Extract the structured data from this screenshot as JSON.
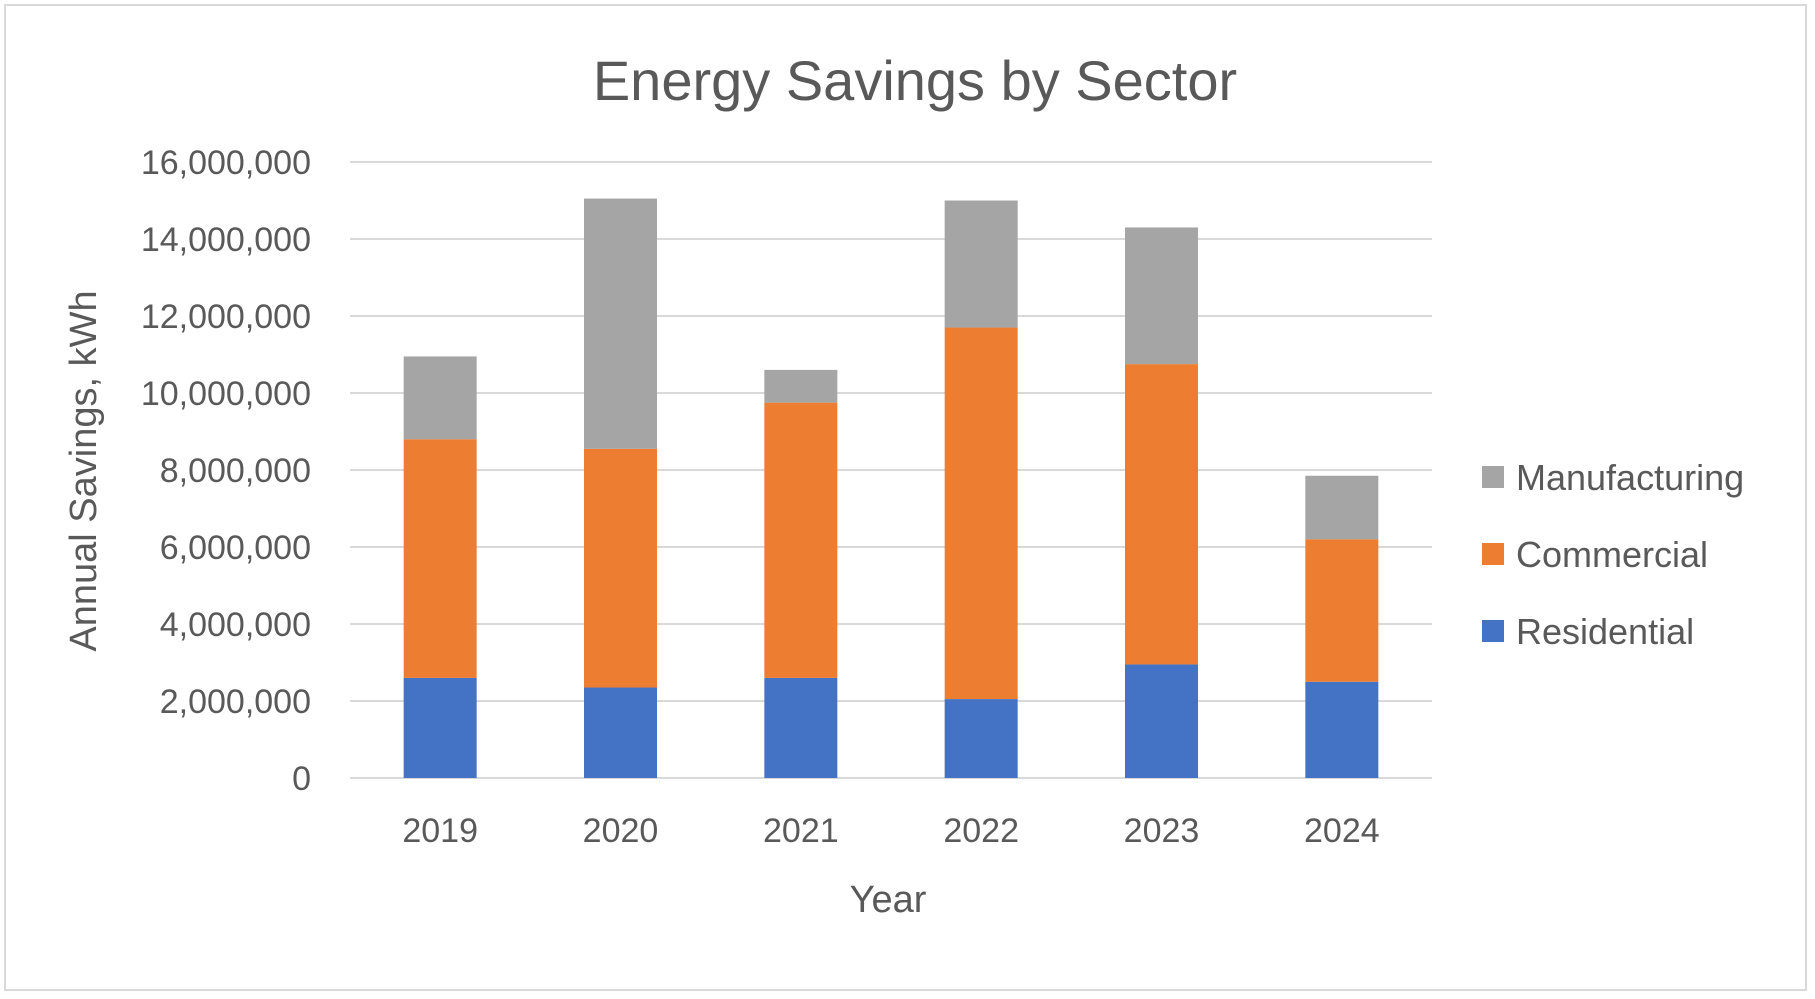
{
  "chart_data": {
    "type": "bar",
    "stacked": true,
    "title": "Energy Savings by Sector",
    "xlabel": "Year",
    "ylabel": "Annual Savings, kWh",
    "ylim": [
      0,
      16000000
    ],
    "y_ticks": [
      0,
      2000000,
      4000000,
      6000000,
      8000000,
      10000000,
      12000000,
      14000000,
      16000000
    ],
    "y_tick_labels": [
      "0",
      "2,000,000",
      "4,000,000",
      "6,000,000",
      "8,000,000",
      "10,000,000",
      "12,000,000",
      "14,000,000",
      "16,000,000"
    ],
    "grid": true,
    "legend_position": "right",
    "categories": [
      "2019",
      "2020",
      "2021",
      "2022",
      "2023",
      "2024"
    ],
    "series": [
      {
        "name": "Residential",
        "color": "#4472C4",
        "values": [
          2600000,
          2350000,
          2600000,
          2050000,
          2950000,
          2500000
        ]
      },
      {
        "name": "Commercial",
        "color": "#ED7D31",
        "values": [
          6200000,
          6200000,
          7150000,
          9650000,
          7800000,
          3700000
        ]
      },
      {
        "name": "Manufacturing",
        "color": "#A5A5A5",
        "values": [
          2150000,
          6500000,
          850000,
          3300000,
          3550000,
          1650000
        ]
      }
    ],
    "legend_order": [
      "Manufacturing",
      "Commercial",
      "Residential"
    ]
  }
}
